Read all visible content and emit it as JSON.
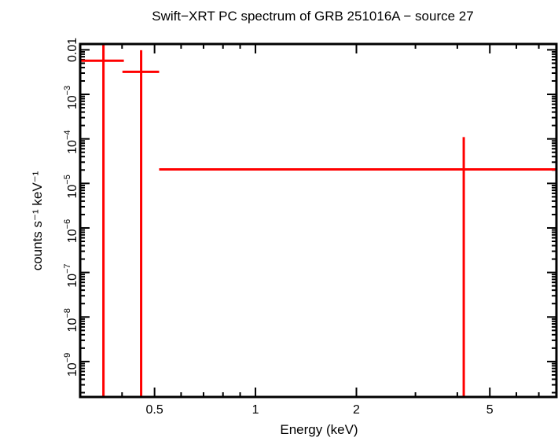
{
  "chart_data": {
    "type": "scatter",
    "title": "Swift−XRT PC spectrum of GRB 251016A − source 27",
    "xlabel": "Energy (keV)",
    "ylabel": "counts s⁻¹ keV⁻¹",
    "xscale": "log",
    "yscale": "log",
    "xlim": [
      0.3,
      7.9
    ],
    "ylim": [
      1.6e-10,
      0.0135
    ],
    "x_ticks": [
      {
        "value": 0.5,
        "label": "0.5"
      },
      {
        "value": 1,
        "label": "1"
      },
      {
        "value": 2,
        "label": "2"
      },
      {
        "value": 5,
        "label": "5"
      }
    ],
    "y_ticks": [
      {
        "value": 0.01,
        "base": "0.01",
        "exp": ""
      },
      {
        "value": 0.001,
        "base": "10",
        "exp": "−3"
      },
      {
        "value": 0.0001,
        "base": "10",
        "exp": "−4"
      },
      {
        "value": 1e-05,
        "base": "10",
        "exp": "−5"
      },
      {
        "value": 1e-06,
        "base": "10",
        "exp": "−6"
      },
      {
        "value": 1e-07,
        "base": "10",
        "exp": "−7"
      },
      {
        "value": 1e-08,
        "base": "10",
        "exp": "−8"
      },
      {
        "value": 1e-09,
        "base": "10",
        "exp": "−9"
      }
    ],
    "grid": false,
    "series_color": "#ff0000",
    "points": [
      {
        "x": 0.352,
        "x_lo": 0.3,
        "x_hi": 0.405,
        "y": 0.0057,
        "y_lo": 1e-11,
        "y_hi": 0.02
      },
      {
        "x": 0.456,
        "x_lo": 0.401,
        "x_hi": 0.516,
        "y": 0.0032,
        "y_lo": 1e-11,
        "y_hi": 0.0098
      },
      {
        "x": 4.18,
        "x_lo": 0.516,
        "x_hi": 7.9,
        "y": 2.06e-05,
        "y_lo": 1e-11,
        "y_hi": 0.00011
      }
    ]
  }
}
